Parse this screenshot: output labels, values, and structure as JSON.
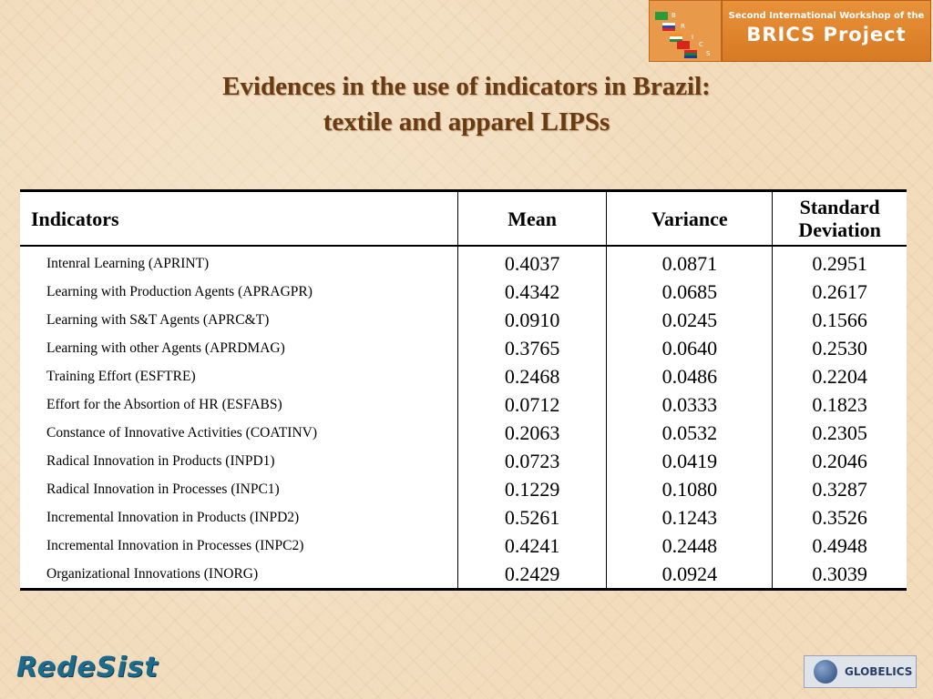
{
  "header": {
    "banner_line1": "Second International Workshop of the",
    "banner_line2": "BRICS Project",
    "logo_letters": [
      "B",
      "R",
      "I",
      "C",
      "S"
    ]
  },
  "title": [
    "Evidences in the use of indicators in Brazil:",
    "textile and apparel LIPSs"
  ],
  "table": {
    "columns": [
      "Indicators",
      "Mean",
      "Variance",
      "Standard Deviation"
    ],
    "rows": [
      [
        "Intenral Learning (APRINT)",
        "0.4037",
        "0.0871",
        "0.2951"
      ],
      [
        "Learning with Production Agents (APRAGPR)",
        "0.4342",
        "0.0685",
        "0.2617"
      ],
      [
        "Learning with S&T Agents (APRC&T)",
        "0.0910",
        "0.0245",
        "0.1566"
      ],
      [
        "Learning with other Agents (APRDMAG)",
        "0.3765",
        "0.0640",
        "0.2530"
      ],
      [
        "Training Effort (ESFTRE)",
        "0.2468",
        "0.0486",
        "0.2204"
      ],
      [
        "Effort for the Absortion of HR (ESFABS)",
        "0.0712",
        "0.0333",
        "0.1823"
      ],
      [
        "Constance of Innovative Activities (COATINV)",
        "0.2063",
        "0.0532",
        "0.2305"
      ],
      [
        "Radical Innovation in Products  (INPD1)",
        "0.0723",
        "0.0419",
        "0.2046"
      ],
      [
        "Radical Innovation  in Processes (INPC1)",
        "0.1229",
        "0.1080",
        "0.3287"
      ],
      [
        "Incremental Innovation in Products (INPD2)",
        "0.5261",
        "0.1243",
        "0.3526"
      ],
      [
        "Incremental Innovation in Processes (INPC2)",
        "0.4241",
        "0.2448",
        "0.4948"
      ],
      [
        "Organizational Innovations (INORG)",
        "0.2429",
        "0.0924",
        "0.3039"
      ]
    ]
  },
  "footer": {
    "left_logo": "RedeSist",
    "right_logo": "GLOBELICS"
  }
}
